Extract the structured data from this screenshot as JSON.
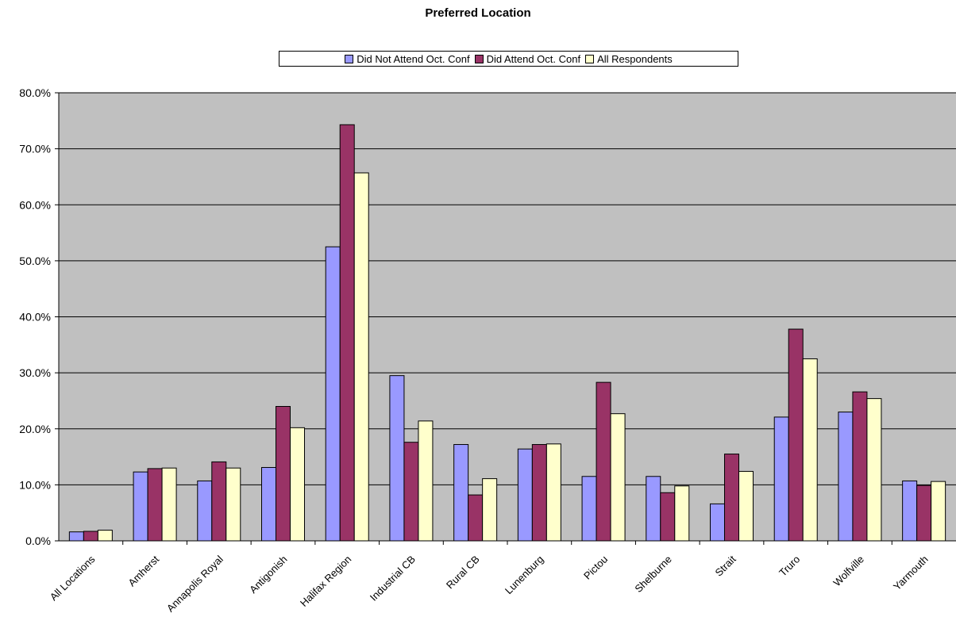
{
  "chart_data": {
    "type": "bar",
    "title": "Preferred Location",
    "xlabel": "",
    "ylabel": "",
    "ylim": [
      0,
      80
    ],
    "ytick_step": 10,
    "ytick_labels": [
      "0.0%",
      "10.0%",
      "20.0%",
      "30.0%",
      "40.0%",
      "50.0%",
      "60.0%",
      "70.0%",
      "80.0%"
    ],
    "grid": true,
    "legend_position": "top-center",
    "categories": [
      "All Locations",
      "Amherst",
      "Annapolis Royal",
      "Antigonish",
      "Halifax Region",
      "Industrial CB",
      "Rural CB",
      "Lunenburg",
      "Pictou",
      "Shelburne",
      "Strait",
      "Truro",
      "Wolfville",
      "Yarmouth"
    ],
    "series": [
      {
        "name": "Did Not Attend Oct. Conf",
        "color": "#9999ff",
        "values": [
          1.6,
          12.3,
          10.7,
          13.1,
          52.5,
          29.5,
          17.2,
          16.4,
          11.5,
          11.5,
          6.6,
          22.1,
          23.0,
          10.7
        ]
      },
      {
        "name": "Did Attend Oct. Conf",
        "color": "#993366",
        "values": [
          1.7,
          12.9,
          14.1,
          24.0,
          74.3,
          17.6,
          8.2,
          17.2,
          28.3,
          8.6,
          15.5,
          37.8,
          26.6,
          9.9
        ]
      },
      {
        "name": "All Respondents",
        "color": "#ffffcc",
        "values": [
          1.9,
          13.0,
          13.0,
          20.2,
          65.7,
          21.4,
          11.1,
          17.3,
          22.7,
          9.8,
          12.4,
          32.5,
          25.4,
          10.6
        ]
      }
    ],
    "colors": {
      "plot_background": "#c0c0c0",
      "gridline": "#000000"
    }
  }
}
